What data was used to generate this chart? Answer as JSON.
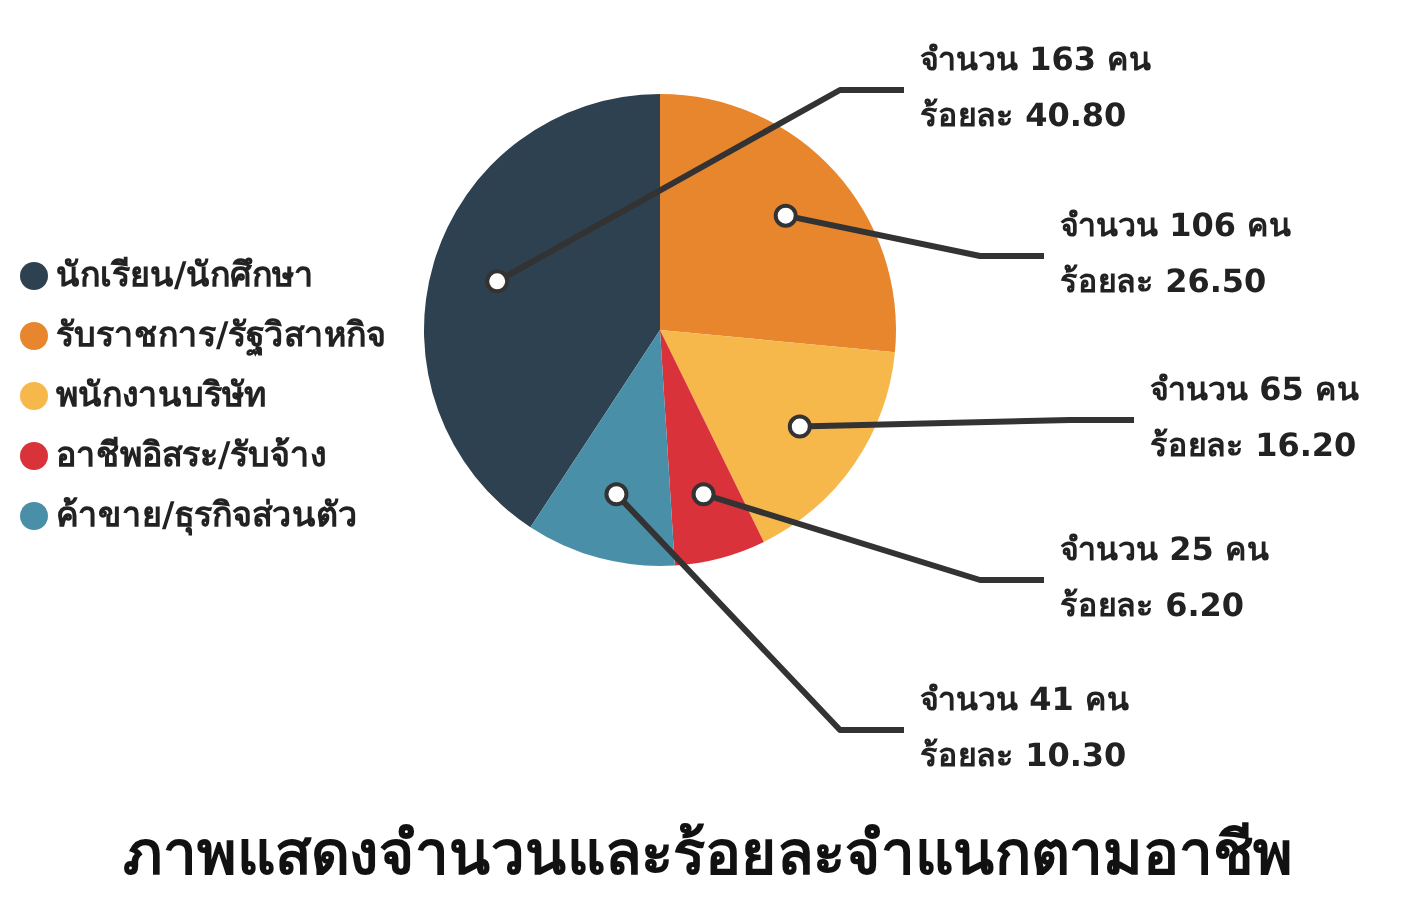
{
  "chart_data": {
    "type": "pie",
    "title": "ภาพแสดงจำนวนและร้อยละจำแนกตามอาชีพ",
    "categories": [
      "นักเรียน/นักศึกษา",
      "รับราชการ/รัฐวิสาหกิจ",
      "พนักงานบริษัท",
      "อาชีพอิสระ/รับจ้าง",
      "ค้าขาย/ธุรกิจส่วนตัว"
    ],
    "values": [
      163,
      106,
      65,
      25,
      41
    ],
    "colors": [
      "#2d4150",
      "#e8862e",
      "#f7b84b",
      "#d9323a",
      "#4a8fa8"
    ],
    "value_labels": [
      "จำนวน 163 คน\nร้อยละ 40.80",
      "จำนวน 106 คน\nร้อยละ 26.50",
      "จำนวน 65 คน\nร้อยละ 16.20",
      "จำนวน 25 คน\nร้อยละ 6.20",
      "จำนวน 41 คน\nร้อยละ 10.30"
    ],
    "legend": "left"
  }
}
